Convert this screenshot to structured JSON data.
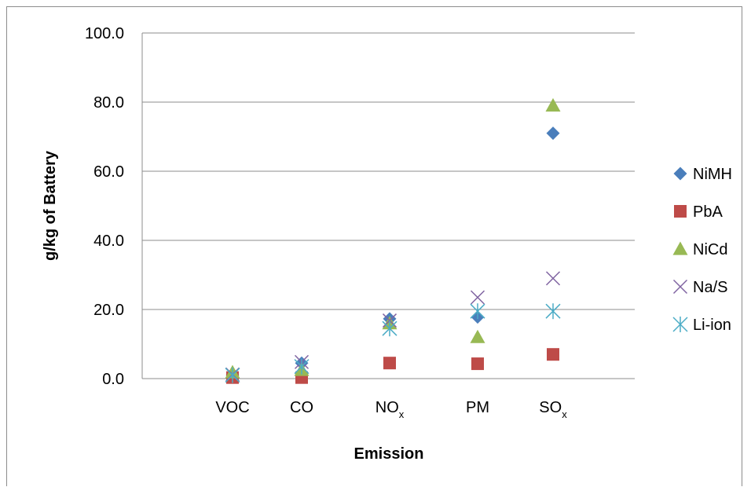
{
  "chart_data": {
    "type": "scatter",
    "title": "",
    "xlabel": "Emission",
    "ylabel": "g/kg of Battery",
    "categories": [
      {
        "base": "VOC",
        "sub": ""
      },
      {
        "base": "CO",
        "sub": ""
      },
      {
        "base": "NO",
        "sub": "x"
      },
      {
        "base": "PM",
        "sub": ""
      },
      {
        "base": "SO",
        "sub": "x"
      }
    ],
    "ylim": [
      0,
      100
    ],
    "yticks": [
      "0.0",
      "20.0",
      "40.0",
      "60.0",
      "80.0",
      "100.0"
    ],
    "grid": true,
    "legend_position": "right",
    "series": [
      {
        "name": "NiMH",
        "marker": "diamond",
        "color": "#4a7ebb",
        "values": [
          1.0,
          4.5,
          17.3,
          17.8,
          71.0
        ]
      },
      {
        "name": "PbA",
        "marker": "square",
        "color": "#be4b48",
        "values": [
          0.3,
          0.3,
          4.5,
          4.3,
          7.0
        ]
      },
      {
        "name": "NiCd",
        "marker": "triangle",
        "color": "#98b954",
        "values": [
          1.8,
          2.5,
          16.0,
          12.0,
          79.0
        ]
      },
      {
        "name": "Na/S",
        "marker": "x",
        "color": "#8064a2",
        "values": [
          1.2,
          4.8,
          16.8,
          23.5,
          29.0
        ]
      },
      {
        "name": "Li-ion",
        "marker": "star",
        "color": "#4bacc6",
        "values": [
          1.0,
          3.5,
          14.5,
          19.5,
          19.5
        ]
      }
    ]
  }
}
